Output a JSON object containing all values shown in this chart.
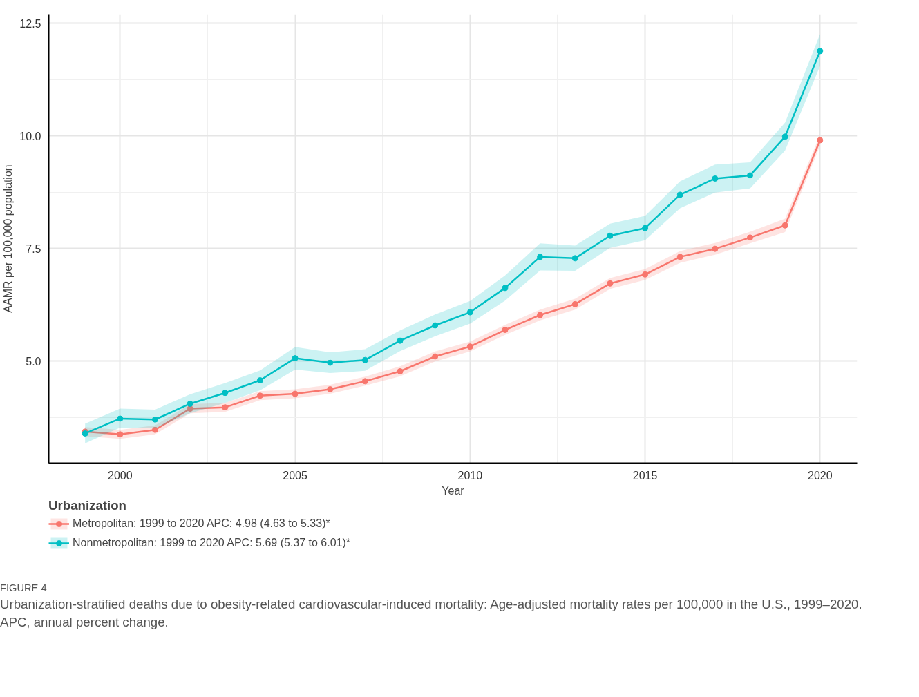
{
  "chart_data": {
    "type": "line",
    "xlabel": "Year",
    "ylabel": "AAMR per 100,000 population",
    "legend_title": "Urbanization",
    "x": [
      1999,
      2000,
      2001,
      2002,
      2003,
      2004,
      2005,
      2006,
      2007,
      2008,
      2009,
      2010,
      2011,
      2012,
      2013,
      2014,
      2015,
      2016,
      2017,
      2018,
      2019,
      2020
    ],
    "series": [
      {
        "name": "Metropolitan: 1999 to 2020 APC: 4.98 (4.63 to 5.33)*",
        "color": "#f8766d",
        "values": [
          3.43,
          3.37,
          3.47,
          3.94,
          3.97,
          4.23,
          4.27,
          4.37,
          4.55,
          4.77,
          5.1,
          5.32,
          5.69,
          6.02,
          6.26,
          6.72,
          6.92,
          7.31,
          7.49,
          7.74,
          8.01,
          9.9
        ],
        "lower": [
          3.33,
          3.27,
          3.37,
          3.84,
          3.87,
          4.13,
          4.17,
          4.27,
          4.45,
          4.66,
          4.99,
          5.21,
          5.58,
          5.9,
          6.14,
          6.6,
          6.8,
          7.18,
          7.36,
          7.61,
          7.86,
          9.78
        ],
        "upper": [
          3.53,
          3.47,
          3.57,
          4.04,
          4.07,
          4.33,
          4.37,
          4.47,
          4.65,
          4.88,
          5.21,
          5.43,
          5.8,
          6.14,
          6.38,
          6.84,
          7.04,
          7.44,
          7.62,
          7.87,
          8.16,
          10.02
        ]
      },
      {
        "name": "Nonmetropolitan: 1999 to 2020 APC: 5.69 (5.37 to 6.01)*",
        "color": "#00bfc4",
        "values": [
          3.39,
          3.72,
          3.7,
          4.05,
          4.29,
          4.57,
          5.06,
          4.96,
          5.02,
          5.45,
          5.79,
          6.08,
          6.62,
          7.31,
          7.28,
          7.78,
          7.95,
          8.69,
          9.05,
          9.12,
          9.98,
          11.88
        ],
        "lower": [
          3.17,
          3.52,
          3.5,
          3.84,
          4.07,
          4.35,
          4.81,
          4.73,
          4.78,
          5.22,
          5.55,
          5.83,
          6.34,
          7.01,
          7.0,
          7.51,
          7.68,
          8.39,
          8.74,
          8.83,
          9.67,
          11.55
        ],
        "upper": [
          3.61,
          3.94,
          3.92,
          4.26,
          4.51,
          4.79,
          5.31,
          5.19,
          5.26,
          5.68,
          6.03,
          6.33,
          6.9,
          7.61,
          7.56,
          8.05,
          8.22,
          8.99,
          9.36,
          9.41,
          10.29,
          12.26
        ]
      }
    ],
    "xlim": [
      1997.96,
      2021.06
    ],
    "xticks": [
      2000,
      2005,
      2010,
      2015,
      2020
    ],
    "ylim": [
      2.73,
      12.7
    ],
    "yticks": [
      {
        "value": 5,
        "label": "5.0"
      },
      {
        "value": 7.5,
        "label": "7.5"
      },
      {
        "value": 10,
        "label": "10.0"
      },
      {
        "value": 12.5,
        "label": "12.5"
      }
    ],
    "grid": true,
    "legend": "bottom",
    "marker": "circle",
    "line_style": "solid",
    "annotations": [
      "FIGURE 4",
      "Urbanization-stratified deaths due to obesity-related cardiovascular-induced mortality: Age-adjusted mortality rates per 100,000 in the U.S., 1999–2020. APC, annual percent change."
    ]
  }
}
